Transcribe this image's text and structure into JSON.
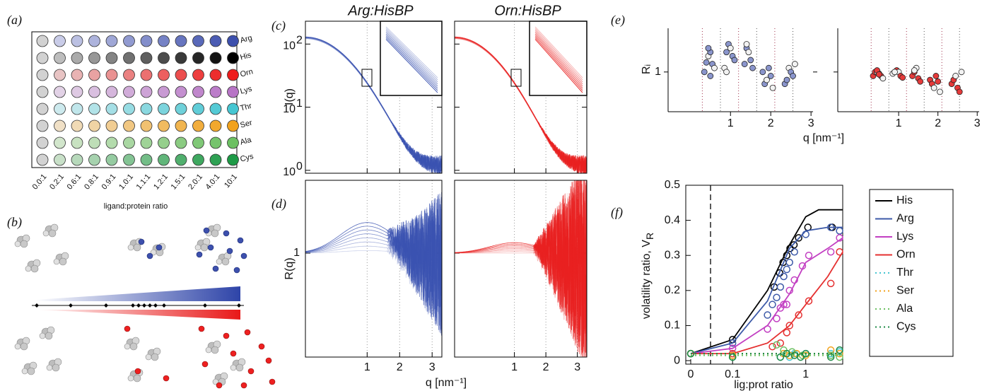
{
  "panel_labels": [
    "(a)",
    "(b)",
    "(c)",
    "(d)",
    "(e)",
    "(f)"
  ],
  "plate": {
    "rows": [
      "Arg",
      "His",
      "Orn",
      "Lys",
      "Thr",
      "Ser",
      "Ala",
      "Cys"
    ],
    "row_colors": [
      [
        "#c9cce8",
        "#3d50ad"
      ],
      [
        "#bdbdbd",
        "#000000"
      ],
      [
        "#e8c4c4",
        "#ee1c1c"
      ],
      [
        "#e2d2e6",
        "#b774c6"
      ],
      [
        "#cdeaee",
        "#46c6d2"
      ],
      [
        "#f0e0c6",
        "#f2a21c"
      ],
      [
        "#d2e6cc",
        "#6cc062"
      ],
      [
        "#c8e0c8",
        "#1d9a46"
      ]
    ],
    "base_color": "#d2d2d2",
    "columns": [
      "0.0:1",
      "0.2:1",
      "0.6:1",
      "0.8:1",
      "0.9:1",
      "1.0:1",
      "1.1:1",
      "1.2:1",
      "1.5:1",
      "2.0:1",
      "4.0:1",
      "10:1"
    ],
    "x_label": "ligand:protein ratio"
  },
  "saxs": {
    "titles": [
      "Arg:HisBP",
      "Orn:HisBP"
    ],
    "colors": [
      "#3a52b0",
      "#e82020"
    ],
    "i_label": "I(q)",
    "r_label": "R(q)",
    "x_label": "q [nm⁻¹]",
    "xlim": [
      -0.9,
      3.3
    ],
    "xticks": [
      1,
      2,
      3
    ],
    "yscale": "log",
    "i_ylim": [
      0.9,
      230
    ],
    "i_yticks": [
      {
        "value": 1,
        "label": "10",
        "exponent": "0"
      },
      {
        "value": 10,
        "label": "10",
        "exponent": "1"
      },
      {
        "value": 100,
        "label": "10",
        "exponent": "2"
      }
    ],
    "r_ylim": [
      0.45,
      1.75
    ],
    "r_yticks": [
      1
    ]
  },
  "chart_data": [
    {
      "type": "scatter",
      "y_label": "Rᵢ",
      "x_label": "q [nm⁻¹]",
      "xlim": [
        -0.55,
        3.05
      ],
      "xticks": [
        1,
        2,
        3
      ],
      "ylim": [
        0.5,
        1.55
      ],
      "yticks": [
        1
      ],
      "panels": [
        {
          "color": "#8a95cc",
          "x": [
            0.35,
            0.4,
            0.45,
            0.5,
            0.55,
            0.6,
            0.45,
            0.5,
            0.85,
            0.9,
            0.95,
            1.0,
            1.05,
            1.1,
            0.9,
            1.35,
            1.4,
            1.45,
            1.5,
            1.55,
            1.4,
            1.8,
            1.85,
            1.9,
            1.95,
            2.0,
            2.05,
            2.35,
            2.4,
            2.45,
            2.5,
            2.55,
            2.6
          ],
          "values": [
            1.0,
            1.12,
            1.2,
            1.25,
            1.1,
            1.05,
            1.3,
            0.95,
            1.05,
            1.25,
            1.35,
            1.3,
            1.2,
            1.15,
            1.0,
            1.1,
            1.3,
            1.25,
            1.15,
            1.05,
            1.35,
            1.0,
            0.85,
            0.9,
            1.05,
            0.95,
            0.8,
            0.85,
            0.9,
            1.05,
            1.0,
            0.95,
            1.1
          ]
        },
        {
          "color": "#e53a3a",
          "x": [
            0.35,
            0.4,
            0.45,
            0.5,
            0.55,
            0.6,
            0.45,
            0.5,
            0.85,
            0.9,
            0.95,
            1.0,
            1.05,
            1.1,
            0.9,
            1.35,
            1.4,
            1.45,
            1.5,
            1.55,
            1.4,
            1.8,
            1.85,
            1.9,
            1.95,
            2.0,
            2.05,
            2.35,
            2.4,
            2.45,
            2.5,
            2.55,
            2.6
          ],
          "values": [
            0.95,
            1.0,
            1.0,
            0.98,
            0.95,
            0.92,
            1.02,
            0.97,
            0.98,
            1.0,
            1.02,
            1.0,
            0.95,
            0.93,
            1.0,
            0.95,
            1.0,
            1.05,
            0.92,
            0.88,
            1.02,
            0.9,
            0.85,
            0.8,
            0.95,
            0.88,
            0.75,
            0.85,
            0.9,
            0.95,
            0.8,
            0.75,
            1.0
          ]
        }
      ]
    },
    {
      "type": "line",
      "y_label": "volatility ratio, V",
      "y_label_sub": "R",
      "x_label": "lig:prot ratio",
      "xscale": "symlog",
      "linthresh": 0.04,
      "xlim": [
        0,
        3.2
      ],
      "xticks": [
        0,
        0.1,
        1
      ],
      "ylim": [
        -0.01,
        0.5
      ],
      "yticks": [
        0,
        0.1,
        0.2,
        0.3,
        0.4,
        0.5
      ],
      "vline_x": 0.05,
      "series": [
        {
          "name": "His",
          "color": "#000000",
          "style": "solid",
          "x": [
            0,
            0.1,
            0.37,
            0.44,
            0.49,
            0.55,
            0.61,
            0.69,
            0.8,
            1.07,
            2.3
          ],
          "values": [
            0.02,
            0.06,
            0.21,
            0.25,
            0.28,
            0.3,
            0.32,
            0.33,
            0.35,
            0.38,
            0.38
          ],
          "fit_x": [
            0,
            0.1,
            0.3,
            0.6,
            1,
            1.5,
            3.2
          ],
          "fit_values": [
            0.02,
            0.06,
            0.2,
            0.33,
            0.41,
            0.43,
            0.43
          ]
        },
        {
          "name": "Arg",
          "color": "#3d5aa8",
          "style": "solid",
          "x": [
            0,
            0.1,
            0.3,
            0.35,
            0.4,
            0.45,
            0.5,
            0.55,
            0.6,
            0.7,
            1.0,
            2.2,
            2.9
          ],
          "values": [
            0.02,
            0.05,
            0.13,
            0.16,
            0.18,
            0.21,
            0.24,
            0.26,
            0.28,
            0.31,
            0.36,
            0.38,
            0.37
          ],
          "fit_x": [
            0,
            0.1,
            0.3,
            0.6,
            1,
            2,
            3.2
          ],
          "fit_values": [
            0.02,
            0.05,
            0.17,
            0.32,
            0.37,
            0.38,
            0.38
          ]
        },
        {
          "name": "Lys",
          "color": "#c23fc2",
          "style": "solid",
          "x": [
            0,
            0.1,
            0.3,
            0.4,
            0.45,
            0.5,
            0.55,
            0.6,
            0.7,
            0.9,
            1.1,
            2.2,
            2.9
          ],
          "values": [
            0.02,
            0.035,
            0.09,
            0.12,
            0.15,
            0.16,
            0.16,
            0.2,
            0.23,
            0.27,
            0.3,
            0.31,
            0.35
          ],
          "fit_x": [
            0,
            0.1,
            0.3,
            0.6,
            1,
            2,
            3.2
          ],
          "fit_values": [
            0.02,
            0.035,
            0.1,
            0.19,
            0.28,
            0.32,
            0.35
          ]
        },
        {
          "name": "Orn",
          "color": "#e53030",
          "style": "solid",
          "x": [
            0,
            0.1,
            0.35,
            0.45,
            0.55,
            0.6,
            0.8,
            1.1,
            2.2,
            2.9
          ],
          "values": [
            0.02,
            0.02,
            0.04,
            0.05,
            0.08,
            0.1,
            0.13,
            0.17,
            0.22,
            0.31
          ],
          "fit_x": [
            0,
            0.1,
            0.3,
            0.6,
            1,
            2,
            3.2
          ],
          "fit_values": [
            0.02,
            0.02,
            0.05,
            0.1,
            0.16,
            0.24,
            0.31
          ]
        },
        {
          "name": "Thr",
          "color": "#46c6d2",
          "style": "dotted",
          "x": [
            0,
            0.1,
            0.45,
            0.55,
            0.6,
            0.7,
            1.0,
            2.2,
            2.9
          ],
          "values": [
            0.02,
            0.01,
            0.01,
            0.02,
            0.01,
            0.02,
            0.02,
            0.02,
            0.025
          ],
          "fit_x": [
            0,
            3.2
          ],
          "fit_values": [
            0.02,
            0.02
          ]
        },
        {
          "name": "Ser",
          "color": "#f2a21c",
          "style": "dotted",
          "x": [
            0,
            0.1,
            0.5,
            0.6,
            0.75,
            1.0,
            2.2,
            2.9
          ],
          "values": [
            0.02,
            0.015,
            0.02,
            0.015,
            0.02,
            0.015,
            0.03,
            0.02
          ],
          "fit_x": [
            0,
            3.2
          ],
          "fit_values": [
            0.02,
            0.02
          ]
        },
        {
          "name": "Ala",
          "color": "#6cc062",
          "style": "dotted",
          "x": [
            0,
            0.1,
            0.4,
            0.5,
            0.65,
            0.9,
            2.2,
            2.9
          ],
          "values": [
            0.02,
            0.01,
            0.045,
            0.03,
            0.025,
            0.015,
            0.015,
            0.01
          ],
          "fit_x": [
            0,
            3.2
          ],
          "fit_values": [
            0.015,
            0.015
          ]
        },
        {
          "name": "Cys",
          "color": "#1d8a46",
          "style": "dotted",
          "x": [
            0,
            0.1,
            0.45,
            0.55,
            0.7,
            0.85,
            1.0,
            2.2,
            2.9
          ],
          "values": [
            0.02,
            0.01,
            0.01,
            0.02,
            0.015,
            0.01,
            0.02,
            0.01,
            0.03
          ],
          "fit_x": [
            0,
            3.2
          ],
          "fit_values": [
            0.02,
            0.02
          ]
        }
      ]
    }
  ]
}
